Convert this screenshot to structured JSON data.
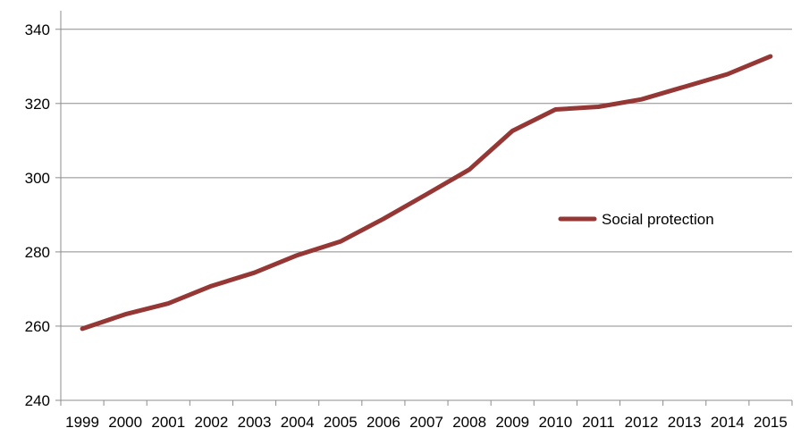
{
  "chart_data": {
    "type": "line",
    "title": "",
    "xlabel": "",
    "ylabel": "",
    "x": [
      "1999",
      "2000",
      "2001",
      "2002",
      "2003",
      "2004",
      "2005",
      "2006",
      "2007",
      "2008",
      "2009",
      "2010",
      "2011",
      "2012",
      "2013",
      "2014",
      "2015"
    ],
    "series": [
      {
        "name": "Social protection",
        "color": "#953735",
        "values": [
          259.3,
          263.2,
          266.1,
          270.8,
          274.4,
          279.1,
          282.8,
          288.9,
          295.5,
          302.2,
          312.6,
          318.4,
          319.1,
          321.1,
          324.5,
          327.9,
          332.7
        ]
      }
    ],
    "ylim": [
      240,
      345
    ],
    "yticks": [
      240,
      260,
      280,
      300,
      320,
      340
    ],
    "grid": true,
    "legend_position": "right-center"
  }
}
